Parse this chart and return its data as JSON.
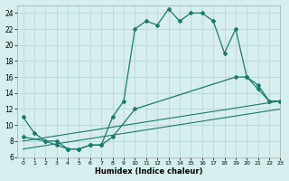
{
  "line1_x": [
    0,
    1,
    2,
    3,
    4,
    5,
    6,
    7,
    8,
    9,
    10,
    11,
    12,
    13,
    14,
    15,
    16,
    17,
    18,
    19,
    20,
    21,
    22,
    23
  ],
  "line1_y": [
    11,
    9,
    8,
    8,
    7,
    7,
    7.5,
    7.5,
    11,
    13,
    22,
    23,
    22.5,
    24.5,
    23,
    24,
    24,
    23,
    19,
    22,
    16,
    14.5,
    13,
    13
  ],
  "line2_x": [
    0,
    2,
    3,
    4,
    5,
    6,
    7,
    8,
    10,
    19,
    20,
    21,
    22,
    23
  ],
  "line2_y": [
    8.5,
    8,
    7.5,
    7,
    7,
    7.5,
    7.5,
    8.5,
    12,
    16,
    16,
    15,
    13,
    13
  ],
  "line3_x": [
    0,
    23
  ],
  "line3_y": [
    8.0,
    13.0
  ],
  "line4_x": [
    0,
    23
  ],
  "line4_y": [
    7.0,
    12.0
  ],
  "color": "#1a7a6e",
  "bg_color": "#d6eeee",
  "grid_color": "#b8d8d8",
  "xlabel": "Humidex (Indice chaleur)",
  "xlim": [
    -0.5,
    23
  ],
  "ylim": [
    6,
    25
  ],
  "yticks": [
    6,
    8,
    10,
    12,
    14,
    16,
    18,
    20,
    22,
    24
  ],
  "xticks": [
    0,
    1,
    2,
    3,
    4,
    5,
    6,
    7,
    8,
    9,
    10,
    11,
    12,
    13,
    14,
    15,
    16,
    17,
    18,
    19,
    20,
    21,
    22,
    23
  ]
}
